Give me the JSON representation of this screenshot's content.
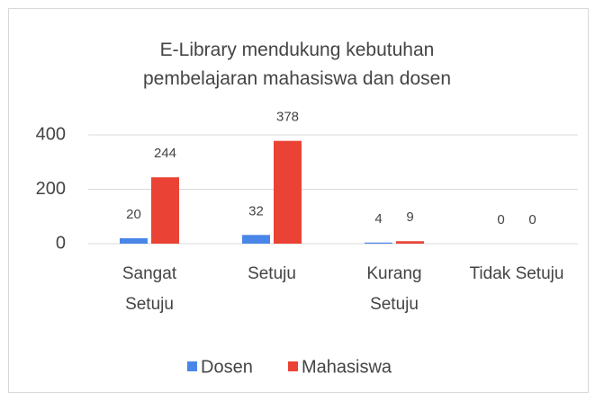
{
  "chart_data": {
    "type": "bar",
    "title": "E-Library mendukung kebutuhan pembelajaran mahasiswa dan dosen",
    "categories": [
      "Sangat Setuju",
      "Setuju",
      "Kurang Setuju",
      "Tidak Setuju"
    ],
    "series": [
      {
        "name": "Dosen",
        "color": "#4a86e8",
        "values": [
          20,
          32,
          4,
          0
        ]
      },
      {
        "name": "Mahasiswa",
        "color": "#ea4335",
        "values": [
          244,
          378,
          9,
          0
        ]
      }
    ],
    "ylim": [
      0,
      400
    ],
    "yticks": [
      0,
      200,
      400
    ],
    "grid": true,
    "legend": "bottom"
  }
}
